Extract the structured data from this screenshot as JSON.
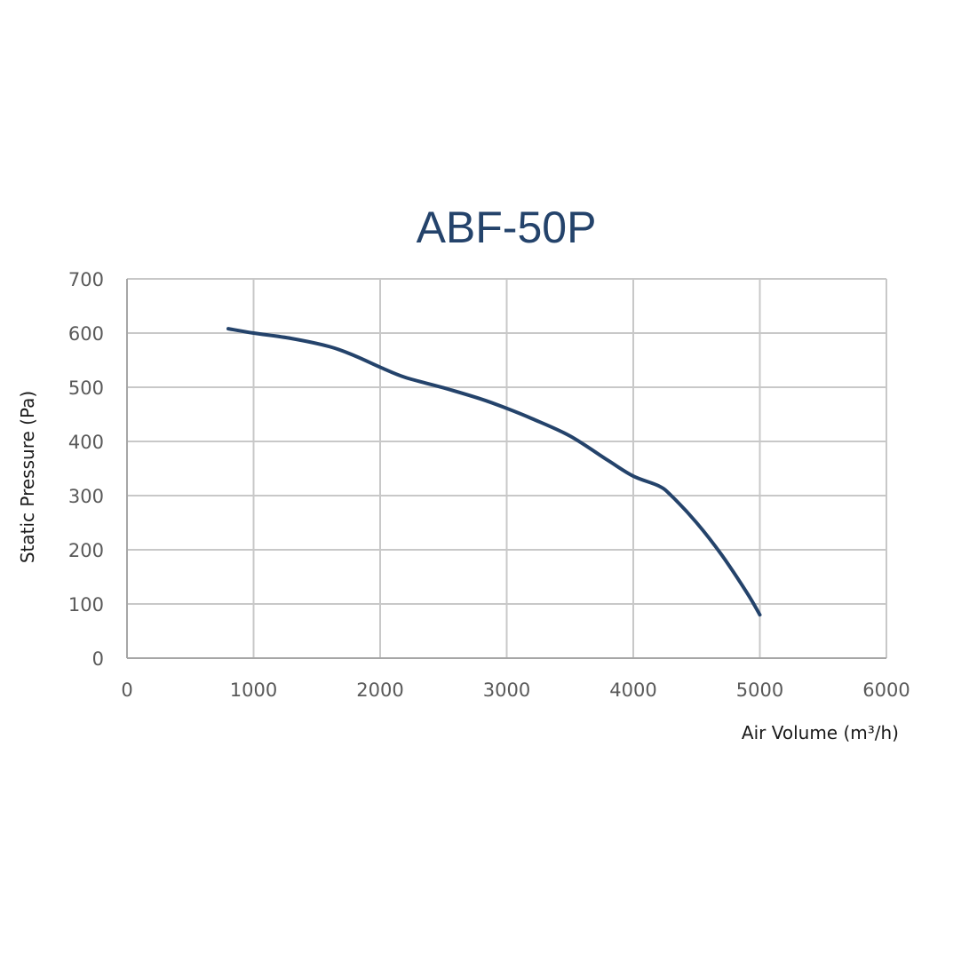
{
  "chart_data": {
    "type": "line",
    "title": "ABF-50P",
    "xlabel": "Air Volume (m³/h)",
    "ylabel": "Static Pressure (Pa)",
    "xlim": [
      0,
      6000
    ],
    "ylim": [
      0,
      700
    ],
    "x_ticks": [
      "0",
      "1000",
      "2000",
      "3000",
      "4000",
      "5000",
      "6000"
    ],
    "y_ticks": [
      "0",
      "100",
      "200",
      "300",
      "400",
      "500",
      "600",
      "700"
    ],
    "grid": true,
    "series": [
      {
        "color": "#24436b",
        "x": [
          800,
          1000,
          1300,
          1600,
          1800,
          2000,
          2200,
          2500,
          2800,
          3000,
          3200,
          3500,
          3800,
          4000,
          4200,
          4300,
          4500,
          4700,
          4900,
          5000
        ],
        "y": [
          608,
          600,
          590,
          575,
          558,
          537,
          518,
          499,
          478,
          461,
          442,
          410,
          365,
          336,
          318,
          300,
          250,
          190,
          120,
          80
        ]
      }
    ]
  }
}
